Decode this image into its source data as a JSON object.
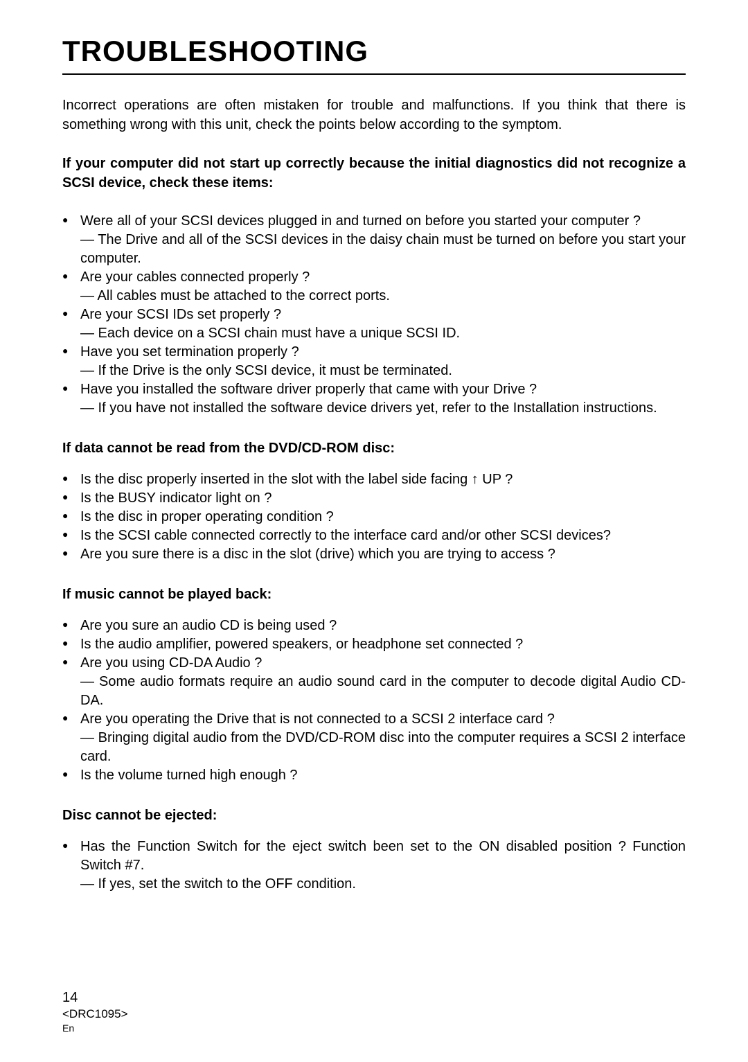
{
  "title": "TROUBLESHOOTING",
  "intro": "Incorrect operations are often mistaken for trouble and malfunctions. If you think that there is something wrong with this unit, check the points below according to the symptom.",
  "sections": [
    {
      "heading": "If your computer did not start up correctly because the initial diagnostics did not recognize a SCSI device, check these items:",
      "items": [
        "Were all of your SCSI devices plugged in and turned on before you started your computer ?\n— The Drive and all of the SCSI devices in the daisy chain must be turned on before you start your computer.",
        "Are your cables connected properly ?\n— All cables must be attached to the correct ports.",
        "Are your SCSI IDs set properly ?\n— Each device on a SCSI chain must have a unique SCSI ID.",
        "Have you set termination properly ?\n— If the Drive is the only SCSI device, it must be terminated.",
        "Have you installed the software driver properly that came with your Drive ?\n— If you have not installed the software device drivers yet, refer to the Installation instructions."
      ]
    },
    {
      "heading": "If data cannot be read from the DVD/CD-ROM disc:",
      "items": [
        "Is the disc properly inserted in the slot with the label side facing ↑ UP ?",
        "Is the BUSY indicator light on ?",
        "Is the disc in proper operating condition ?",
        "Is the SCSI cable connected correctly to the interface card and/or other SCSI devices?",
        "Are you sure there is a disc in the slot (drive) which you are trying to access ?"
      ]
    },
    {
      "heading": "If music cannot be played back:",
      "items": [
        "Are you sure an audio CD is being used ?",
        "Is the audio amplifier, powered speakers, or headphone set connected ?",
        "Are you using CD-DA Audio ?\n— Some audio formats require an audio sound card in the computer to decode digital Audio CD-DA.",
        "Are you operating the Drive that is not connected to a SCSI 2 interface card ?\n— Bringing digital audio from the DVD/CD-ROM disc into the computer requires a SCSI 2 interface card.",
        "Is the volume turned high enough ?"
      ]
    },
    {
      "heading": "Disc cannot be ejected:",
      "items": [
        "Has the Function Switch for the eject switch been set to the ON disabled position ? Function Switch #7.\n— If yes, set the switch to the OFF condition."
      ]
    }
  ],
  "footer": {
    "page": "14",
    "docnum": "<DRC1095>",
    "lang": "En"
  }
}
